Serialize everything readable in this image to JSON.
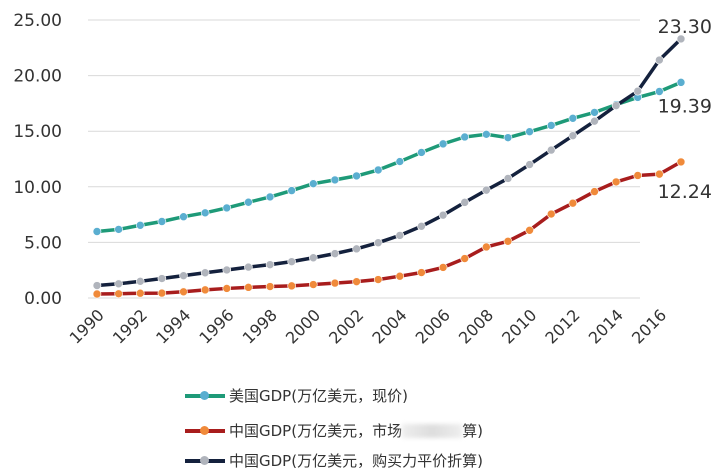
{
  "chart_data": {
    "type": "line",
    "title": "",
    "xlabel": "",
    "ylabel": "",
    "ylim": [
      0,
      25
    ],
    "yticks": [
      "0.00",
      "5.00",
      "10.00",
      "15.00",
      "20.00",
      "25.00"
    ],
    "xticks": [
      "1990",
      "1992",
      "1994",
      "1996",
      "1998",
      "2000",
      "2002",
      "2004",
      "2006",
      "2008",
      "2010",
      "2012",
      "2014",
      "2016"
    ],
    "grid": true,
    "legend_position": "bottom",
    "x": [
      1990,
      1991,
      1992,
      1993,
      1994,
      1995,
      1996,
      1997,
      1998,
      1999,
      2000,
      2001,
      2002,
      2003,
      2004,
      2005,
      2006,
      2007,
      2008,
      2009,
      2010,
      2011,
      2012,
      2013,
      2014,
      2015,
      2016,
      2017
    ],
    "series": [
      {
        "name": "美国GDP(万亿美元，现价)",
        "color": "#1e9a78",
        "marker": "#5aaed0",
        "values": [
          5.98,
          6.17,
          6.54,
          6.88,
          7.31,
          7.66,
          8.1,
          8.61,
          9.09,
          9.66,
          10.28,
          10.62,
          10.98,
          11.51,
          12.27,
          13.09,
          13.86,
          14.48,
          14.72,
          14.42,
          14.96,
          15.52,
          16.16,
          16.69,
          17.39,
          18.04,
          18.57,
          19.39
        ],
        "end_label": "19.39"
      },
      {
        "name": "中国GDP(万亿美元，市场",
        "name_suffix": "算)",
        "color": "#a81d1d",
        "marker": "#f08a3a",
        "values": [
          0.36,
          0.38,
          0.43,
          0.44,
          0.56,
          0.73,
          0.86,
          0.96,
          1.03,
          1.09,
          1.21,
          1.34,
          1.47,
          1.66,
          1.96,
          2.29,
          2.75,
          3.55,
          4.59,
          5.1,
          6.09,
          7.55,
          8.53,
          9.57,
          10.44,
          11.02,
          11.14,
          12.24
        ],
        "end_label": "12.24"
      },
      {
        "name": "中国GDP(万亿美元，购买力平价折算)",
        "color": "#14213d",
        "marker": "#b0b4bc",
        "values": [
          1.12,
          1.28,
          1.5,
          1.75,
          2.01,
          2.27,
          2.52,
          2.78,
          3.0,
          3.27,
          3.62,
          3.99,
          4.42,
          4.97,
          5.63,
          6.45,
          7.45,
          8.6,
          9.7,
          10.75,
          12.0,
          13.3,
          14.6,
          15.9,
          17.3,
          18.6,
          21.4,
          23.3
        ],
        "end_label": "23.30"
      }
    ]
  }
}
